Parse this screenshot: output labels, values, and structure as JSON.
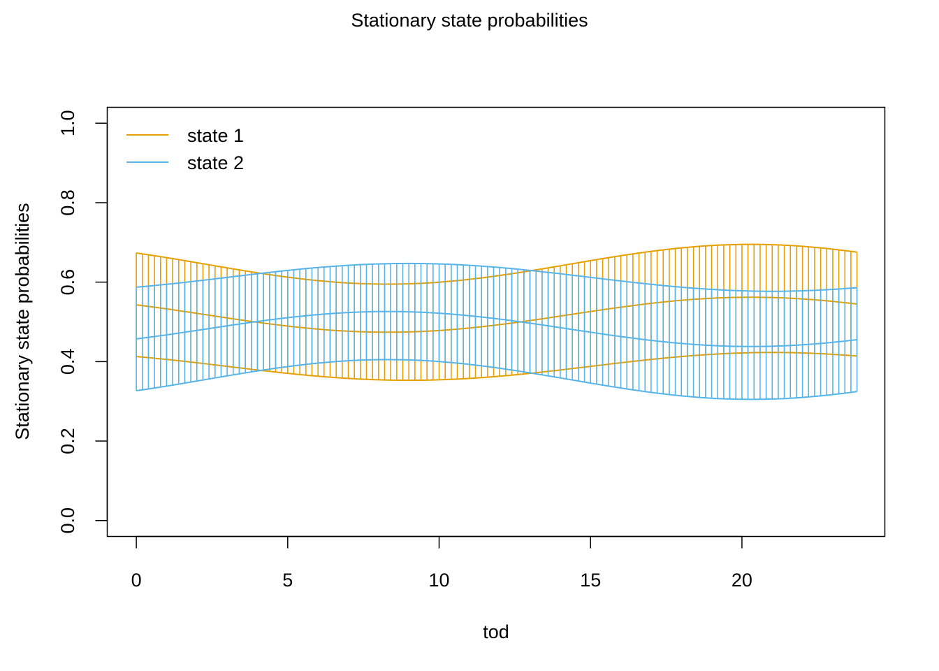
{
  "chart_data": {
    "type": "line",
    "title": "Stationary state probabilities",
    "xlabel": "tod",
    "ylabel": "Stationary state probabilities",
    "xlim": [
      -0.96,
      24.72
    ],
    "ylim": [
      -0.04,
      1.04
    ],
    "xticks": [
      0,
      5,
      10,
      15,
      20
    ],
    "xtick_labels": [
      "0",
      "5",
      "10",
      "15",
      "20"
    ],
    "yticks": [
      0.0,
      0.2,
      0.4,
      0.6,
      0.8,
      1.0
    ],
    "ytick_labels": [
      "0.0",
      "0.2",
      "0.4",
      "0.6",
      "0.8",
      "1.0"
    ],
    "grid": false,
    "legend_position": "top-left",
    "x": {
      "start": 0,
      "end": 23.8,
      "step": 0.2
    },
    "series": [
      {
        "name": "state 1",
        "color": "#E69F00",
        "mean": {
          "mid": 0.518,
          "amp1": 0.044,
          "amp2": 0.0,
          "phase_hour": 20.3
        },
        "lower": {
          "mid": 0.388,
          "amp1": 0.035,
          "amp2": -0.0,
          "phase_hour": 21.0
        },
        "upper": {
          "mid": 0.645,
          "amp1": 0.05,
          "amp2": 0.0,
          "phase_hour": 20.3
        }
      },
      {
        "name": "state 2",
        "color": "#56B4E9",
        "mean": {
          "mid": 0.482,
          "amp1": -0.044,
          "amp2": 0.0,
          "phase_hour": 20.3
        },
        "lower": {
          "mid": 0.355,
          "amp1": -0.05,
          "amp2": 0.0,
          "phase_hour": 20.3
        },
        "upper": {
          "mid": 0.612,
          "amp1": -0.035,
          "amp2": 0.0,
          "phase_hour": 21.0
        }
      }
    ]
  }
}
